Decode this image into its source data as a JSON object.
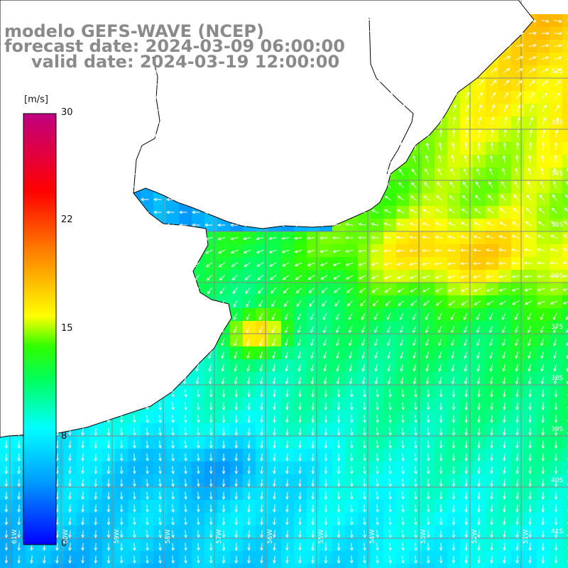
{
  "header": {
    "model_line": "modelo GEFS-WAVE (NCEP)",
    "forecast_line": "forecast date: 2024-03-09 06:00:00",
    "valid_line": "valid date: 2024-03-19 12:00:00"
  },
  "colorbar": {
    "unit": "[m/s]",
    "range": [
      0,
      30
    ],
    "tick_labels": [
      "30",
      "22",
      "15",
      "8",
      "0"
    ],
    "colors": [
      "#0000ff",
      "#00a0ff",
      "#00ffff",
      "#00ff40",
      "#40ff00",
      "#ffff00",
      "#ff8000",
      "#ff0000",
      "#d00060",
      "#c00080"
    ]
  },
  "map": {
    "field": "wind speed",
    "arrow_color": "#ffffff",
    "land_color": "#ffffff",
    "grid_color": "#888888",
    "coast_color": "#000000",
    "lon_labels": [
      "61W",
      "60W",
      "59W",
      "58W",
      "57W",
      "56W",
      "55W",
      "54W",
      "53W",
      "52W",
      "51W"
    ],
    "lat_labels": [
      "32S",
      "33S",
      "34S",
      "35S",
      "36S",
      "37S",
      "38S",
      "39S",
      "40S",
      "41S"
    ]
  }
}
